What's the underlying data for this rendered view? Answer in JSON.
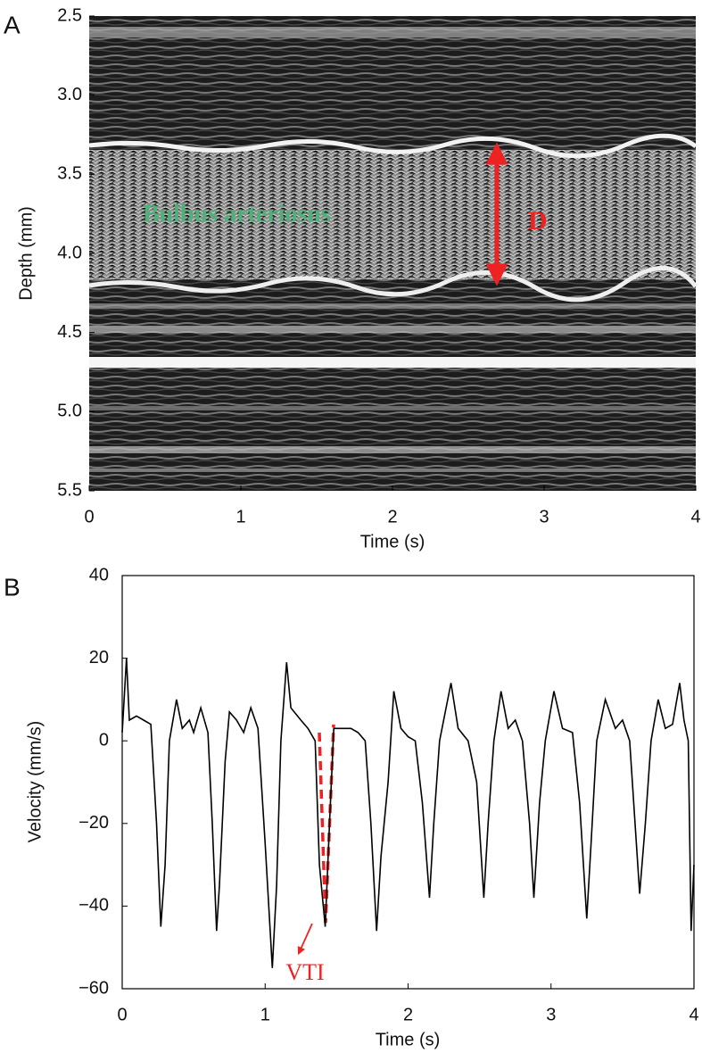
{
  "chart_data": [
    {
      "type": "image",
      "panel_label": "A",
      "xlabel": "Time (s)",
      "ylabel": "Depth (mm)",
      "xlim": [
        0,
        4
      ],
      "xticks": [
        0,
        1,
        2,
        3,
        4
      ],
      "ylim": [
        2.5,
        5.5
      ],
      "invert_y": true,
      "yticks": [
        2.5,
        {
          "value": 3,
          "label": "3.0"
        },
        3.5,
        {
          "value": 4,
          "label": "4.0"
        },
        4.5,
        {
          "value": 5,
          "label": "5.0"
        },
        5.5
      ],
      "annotations": [
        "Bulbus arteriosus",
        "D"
      ]
    },
    {
      "type": "line",
      "panel_label": "B",
      "xlabel": "Time (s)",
      "ylabel": "Velocity (mm/s)",
      "xlim": [
        0,
        4
      ],
      "xticks": [
        0,
        1,
        2,
        3,
        4
      ],
      "ylim": [
        -60,
        40
      ],
      "yticks": [
        {
          "value": -60,
          "label": "−60"
        },
        {
          "value": -40,
          "label": "−40"
        },
        {
          "value": -20,
          "label": "−20"
        },
        0,
        20,
        40
      ],
      "color": "#000000",
      "annotations": [
        "VTI"
      ],
      "x": [
        0,
        0.03,
        0.05,
        0.1,
        0.15,
        0.2,
        0.24,
        0.27,
        0.3,
        0.33,
        0.38,
        0.42,
        0.47,
        0.5,
        0.55,
        0.6,
        0.63,
        0.66,
        0.68,
        0.72,
        0.75,
        0.8,
        0.85,
        0.9,
        0.95,
        1.0,
        1.05,
        1.08,
        1.11,
        1.15,
        1.18,
        1.25,
        1.3,
        1.35,
        1.38,
        1.42,
        1.45,
        1.48,
        1.55,
        1.6,
        1.65,
        1.7,
        1.74,
        1.78,
        1.81,
        1.86,
        1.9,
        1.95,
        2.0,
        2.05,
        2.1,
        2.15,
        2.18,
        2.22,
        2.3,
        2.35,
        2.42,
        2.48,
        2.53,
        2.56,
        2.6,
        2.65,
        2.7,
        2.75,
        2.8,
        2.85,
        2.88,
        2.92,
        2.96,
        3.02,
        3.08,
        3.15,
        3.2,
        3.25,
        3.28,
        3.32,
        3.38,
        3.45,
        3.5,
        3.55,
        3.62,
        3.66,
        3.7,
        3.75,
        3.8,
        3.85,
        3.9,
        3.93,
        3.96,
        3.98,
        4.0
      ],
      "values": [
        2,
        20,
        5,
        6,
        5,
        4,
        -20,
        -45,
        -30,
        0,
        10,
        3,
        5,
        2,
        8,
        2,
        -20,
        -46,
        -35,
        -5,
        7,
        5,
        2,
        8,
        3,
        -25,
        -55,
        -35,
        0,
        19,
        8,
        5,
        3,
        0,
        -30,
        -45,
        -20,
        3,
        3,
        3,
        2,
        0,
        -20,
        -46,
        -28,
        -10,
        12,
        3,
        1,
        0,
        -15,
        -38,
        -20,
        0,
        14,
        3,
        0,
        -10,
        -38,
        -20,
        0,
        12,
        3,
        5,
        0,
        -20,
        -38,
        -15,
        0,
        12,
        3,
        2,
        -15,
        -43,
        -25,
        0,
        10,
        3,
        5,
        0,
        -37,
        -20,
        0,
        10,
        3,
        4,
        14,
        5,
        0,
        -46,
        -30
      ]
    }
  ]
}
